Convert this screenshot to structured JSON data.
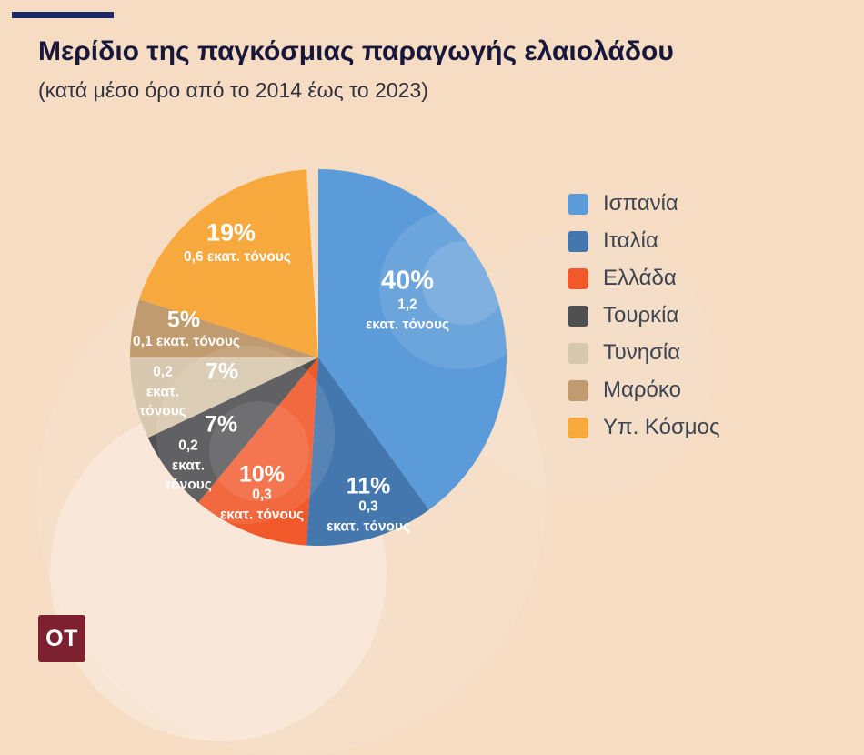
{
  "header": {
    "title": "Μερίδιο της παγκόσμιας παραγωγής ελαιολάδου",
    "subtitle": "(κατά μέσο όρο από το 2014 έως το 2023)"
  },
  "logo": {
    "text": "OT"
  },
  "colors": {
    "background": "#F5DCC3",
    "accent_bar": "#1B2766",
    "title_text": "#17173B",
    "subtitle_text": "#30303E",
    "legend_text": "#3C4452",
    "logo_bg": "#7D2130",
    "label_text": "#FFFFFF"
  },
  "chart_data": {
    "type": "pie",
    "title": "Μερίδιο της παγκόσμιας παραγωγής ελαιολάδου",
    "subtitle": "(κατά μέσο όρο από το 2014 έως το 2023)",
    "unit": "εκατ. τόνους",
    "legend_position": "right",
    "start_angle_deg": -90,
    "direction": "clockwise",
    "slices": [
      {
        "label": "Ισπανία",
        "pct": 40,
        "pct_label": "40%",
        "amount_label": "1,2\nεκατ. τόνους",
        "value_mt": 1.2,
        "color": "#5C9BD9"
      },
      {
        "label": "Ιταλία",
        "pct": 11,
        "pct_label": "11%",
        "amount_label": "0,3\nεκατ. τόνους",
        "value_mt": 0.3,
        "color": "#4377AD"
      },
      {
        "label": "Ελλάδα",
        "pct": 10,
        "pct_label": "10%",
        "amount_label": "0,3\nεκατ. τόνους",
        "value_mt": 0.3,
        "color": "#F1592A"
      },
      {
        "label": "Τουρκία",
        "pct": 7,
        "pct_label": "7%",
        "amount_label": "0,2\nεκατ.\nτόνους",
        "value_mt": 0.2,
        "color": "#505052"
      },
      {
        "label": "Τυνησία",
        "pct": 7,
        "pct_label": "7%",
        "amount_label": "0,2\nεκατ.\nτόνους",
        "value_mt": 0.2,
        "color": "#D8C8AF"
      },
      {
        "label": "Μαρόκο",
        "pct": 5,
        "pct_label": "5%",
        "amount_label": "0,1 εκατ. τόνους",
        "value_mt": 0.1,
        "color": "#C19B70"
      },
      {
        "label": "Υπ. Κόσμος",
        "pct": 19,
        "pct_label": "19%",
        "amount_label": "0,6 εκατ. τόνους",
        "value_mt": 0.6,
        "color": "#F8A93E"
      }
    ]
  }
}
